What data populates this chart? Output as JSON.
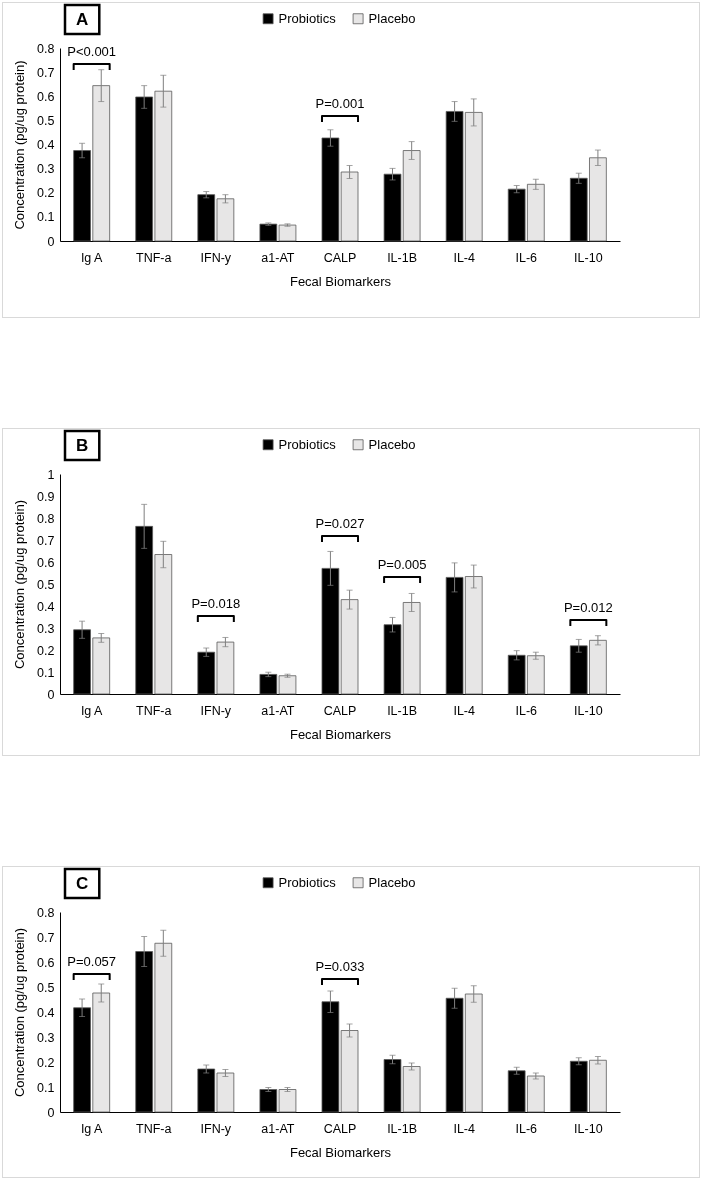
{
  "chart_data": [
    {
      "type": "bar",
      "title": "A",
      "xlabel": "Fecal Biomarkers",
      "ylabel": "Concentration (pg/ug protein)",
      "categories": [
        "Ig A",
        "TNF-a",
        "IFN-y",
        "a1-AT",
        "CALP",
        "IL-1B",
        "IL-4",
        "IL-6",
        "IL-10"
      ],
      "series": [
        {
          "name": "Probiotics",
          "color": "#000000",
          "values": [
            0.375,
            0.597,
            0.192,
            0.07,
            0.427,
            0.277,
            0.537,
            0.215,
            0.26
          ],
          "errors": [
            0.03,
            0.047,
            0.013,
            0.005,
            0.034,
            0.024,
            0.041,
            0.015,
            0.021
          ]
        },
        {
          "name": "Placebo",
          "color": "#e7e6e6",
          "values": [
            0.644,
            0.621,
            0.175,
            0.066,
            0.286,
            0.375,
            0.533,
            0.235,
            0.345
          ],
          "errors": [
            0.066,
            0.066,
            0.017,
            0.005,
            0.027,
            0.037,
            0.056,
            0.021,
            0.032
          ]
        }
      ],
      "ylim": [
        0,
        0.8
      ],
      "yticks": [
        0,
        0.1,
        0.2,
        0.3,
        0.4,
        0.5,
        0.6,
        0.7,
        0.8
      ],
      "legend": "top",
      "annotations": [
        "P<0.001",
        "P=0.001"
      ]
    },
    {
      "type": "bar",
      "title": "B",
      "xlabel": "Fecal Biomarkers",
      "ylabel": "Concentration (pg/ug protein)",
      "categories": [
        "Ig A",
        "TNF-a",
        "IFN-y",
        "a1-AT",
        "CALP",
        "IL-1B",
        "IL-4",
        "IL-6",
        "IL-10"
      ],
      "series": [
        {
          "name": "Probiotics",
          "color": "#000000",
          "values": [
            0.292,
            0.762,
            0.19,
            0.089,
            0.571,
            0.315,
            0.53,
            0.176,
            0.219
          ],
          "errors": [
            0.039,
            0.1,
            0.019,
            0.01,
            0.077,
            0.033,
            0.066,
            0.021,
            0.029
          ]
        },
        {
          "name": "Placebo",
          "color": "#e7e6e6",
          "values": [
            0.255,
            0.634,
            0.236,
            0.083,
            0.429,
            0.416,
            0.534,
            0.174,
            0.244
          ],
          "errors": [
            0.02,
            0.06,
            0.021,
            0.007,
            0.043,
            0.041,
            0.052,
            0.016,
            0.021
          ]
        }
      ],
      "ylim": [
        0,
        1
      ],
      "yticks": [
        0,
        0.1,
        0.2,
        0.3,
        0.4,
        0.5,
        0.6,
        0.7,
        0.8,
        0.9,
        1
      ],
      "legend": "top",
      "annotations": [
        "P=0.018",
        "P=0.027",
        "P=0.005",
        "P=0.012"
      ]
    },
    {
      "type": "bar",
      "title": "C",
      "xlabel": "Fecal Biomarkers",
      "ylabel": "Concentration (pg/ug protein)",
      "categories": [
        "Ig A",
        "TNF-a",
        "IFN-y",
        "a1-AT",
        "CALP",
        "IL-1B",
        "IL-4",
        "IL-6",
        "IL-10"
      ],
      "series": [
        {
          "name": "Probiotics",
          "color": "#000000",
          "values": [
            0.417,
            0.642,
            0.172,
            0.09,
            0.441,
            0.21,
            0.455,
            0.165,
            0.203
          ],
          "errors": [
            0.035,
            0.06,
            0.016,
            0.008,
            0.043,
            0.017,
            0.04,
            0.014,
            0.014
          ]
        },
        {
          "name": "Placebo",
          "color": "#e7e6e6",
          "values": [
            0.476,
            0.675,
            0.156,
            0.09,
            0.326,
            0.182,
            0.472,
            0.144,
            0.207
          ],
          "errors": [
            0.036,
            0.052,
            0.014,
            0.008,
            0.026,
            0.014,
            0.033,
            0.012,
            0.015
          ]
        }
      ],
      "ylim": [
        0,
        0.8
      ],
      "yticks": [
        0,
        0.1,
        0.2,
        0.3,
        0.4,
        0.5,
        0.6,
        0.7,
        0.8
      ],
      "legend": "top",
      "annotations": [
        "P=0.057",
        "P=0.033"
      ]
    }
  ]
}
